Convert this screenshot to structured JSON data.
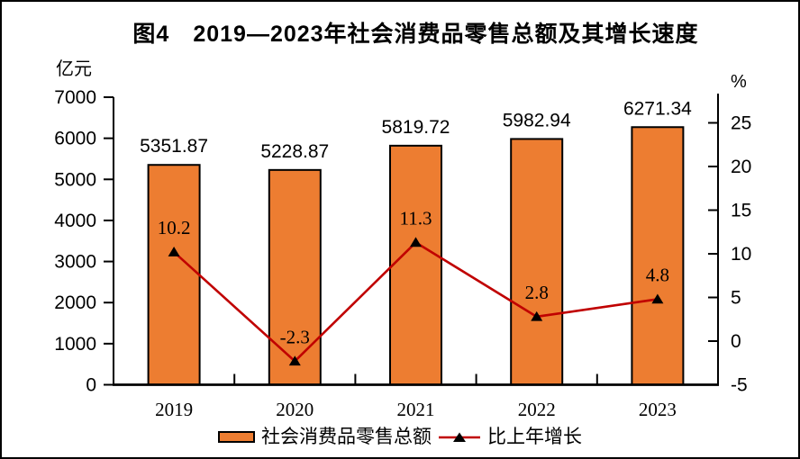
{
  "title": "图4　2019—2023年社会消费品零售总额及其增长速度",
  "left_axis": {
    "unit": "亿元",
    "min": 0,
    "max": 7000,
    "tick_values": [
      0,
      1000,
      2000,
      3000,
      4000,
      5000,
      6000,
      7000
    ],
    "tick_labels": [
      "0",
      "1000",
      "2000",
      "3000",
      "4000",
      "5000",
      "6000",
      "7000"
    ]
  },
  "right_axis": {
    "unit": "%",
    "min": -5,
    "max": 25,
    "tick_values": [
      -5,
      0,
      5,
      10,
      15,
      20,
      25
    ],
    "tick_labels": [
      "-5",
      "0",
      "5",
      "10",
      "15",
      "20",
      "25"
    ]
  },
  "chart_data": {
    "type": "bar+line",
    "title": "图4　2019—2023年社会消费品零售总额及其增长速度",
    "categories": [
      "2019",
      "2020",
      "2021",
      "2022",
      "2023"
    ],
    "series": [
      {
        "name": "社会消费品零售总额",
        "type": "bar",
        "axis": "left",
        "unit": "亿元",
        "values": [
          5351.87,
          5228.87,
          5819.72,
          5982.94,
          6271.34
        ],
        "value_labels": [
          "5351.87",
          "5228.87",
          "5819.72",
          "5982.94",
          "6271.34"
        ],
        "color": "#ED7D31"
      },
      {
        "name": "比上年增长",
        "type": "line",
        "axis": "right",
        "unit": "%",
        "values": [
          10.2,
          -2.3,
          11.3,
          2.8,
          4.8
        ],
        "value_labels": [
          "10.2",
          "-2.3",
          "11.3",
          "2.8",
          "4.8"
        ],
        "color": "#C00000",
        "marker": "triangle",
        "marker_color": "#000000"
      }
    ],
    "xlabel": "",
    "ylabel_left": "亿元",
    "ylabel_right": "%",
    "ylim_left": [
      0,
      7000
    ],
    "ylim_right": [
      -5,
      25
    ],
    "grid": false,
    "legend_position": "bottom"
  },
  "legend": {
    "bar_label": "社会消费品零售总额",
    "line_label": "比上年增长"
  },
  "colors": {
    "bar_fill": "#ED7D31",
    "bar_border": "#000000",
    "line": "#C00000",
    "marker": "#000000",
    "axis": "#000000",
    "text": "#000000"
  }
}
